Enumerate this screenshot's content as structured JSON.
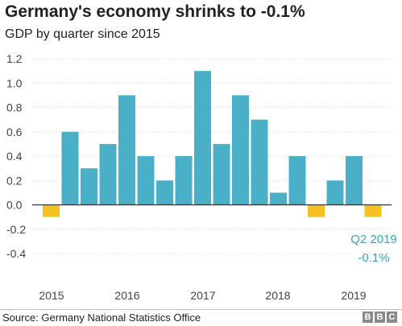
{
  "title": "Germany's economy shrinks to -0.1%",
  "subtitle": "GDP by quarter since 2015",
  "source": "Source: Germany National Statistics Office",
  "logo": [
    "B",
    "B",
    "C"
  ],
  "annotation": {
    "label": "Q2 2019",
    "value": "-0.1%"
  },
  "colors": {
    "positive": "#49b0c8",
    "negative": "#f5c223",
    "annotation": "#3aa3bd",
    "grid": "#d9d9d9",
    "zero": "#333333"
  },
  "chart_data": {
    "type": "bar",
    "title": "Germany's economy shrinks to -0.1%",
    "subtitle": "GDP by quarter since 2015",
    "categories": [
      "2015 Q1",
      "2015 Q2",
      "2015 Q3",
      "2015 Q4",
      "2016 Q1",
      "2016 Q2",
      "2016 Q3",
      "2016 Q4",
      "2017 Q1",
      "2017 Q2",
      "2017 Q3",
      "2017 Q4",
      "2018 Q1",
      "2018 Q2",
      "2018 Q3",
      "2018 Q4",
      "2019 Q1",
      "2019 Q2"
    ],
    "values": [
      -0.1,
      0.6,
      0.3,
      0.5,
      0.9,
      0.4,
      0.2,
      0.4,
      1.1,
      0.5,
      0.9,
      0.7,
      0.1,
      0.4,
      -0.1,
      0.2,
      0.4,
      -0.1
    ],
    "x_tick_labels": [
      "2015",
      "2016",
      "2017",
      "2018",
      "2019"
    ],
    "y_ticks": [
      "1.2",
      "1.0",
      "0.8",
      "0.6",
      "0.4",
      "0.2",
      "0.0",
      "-0.2",
      "-0.4"
    ],
    "ylim": [
      -0.4,
      1.2
    ],
    "grid": true
  }
}
